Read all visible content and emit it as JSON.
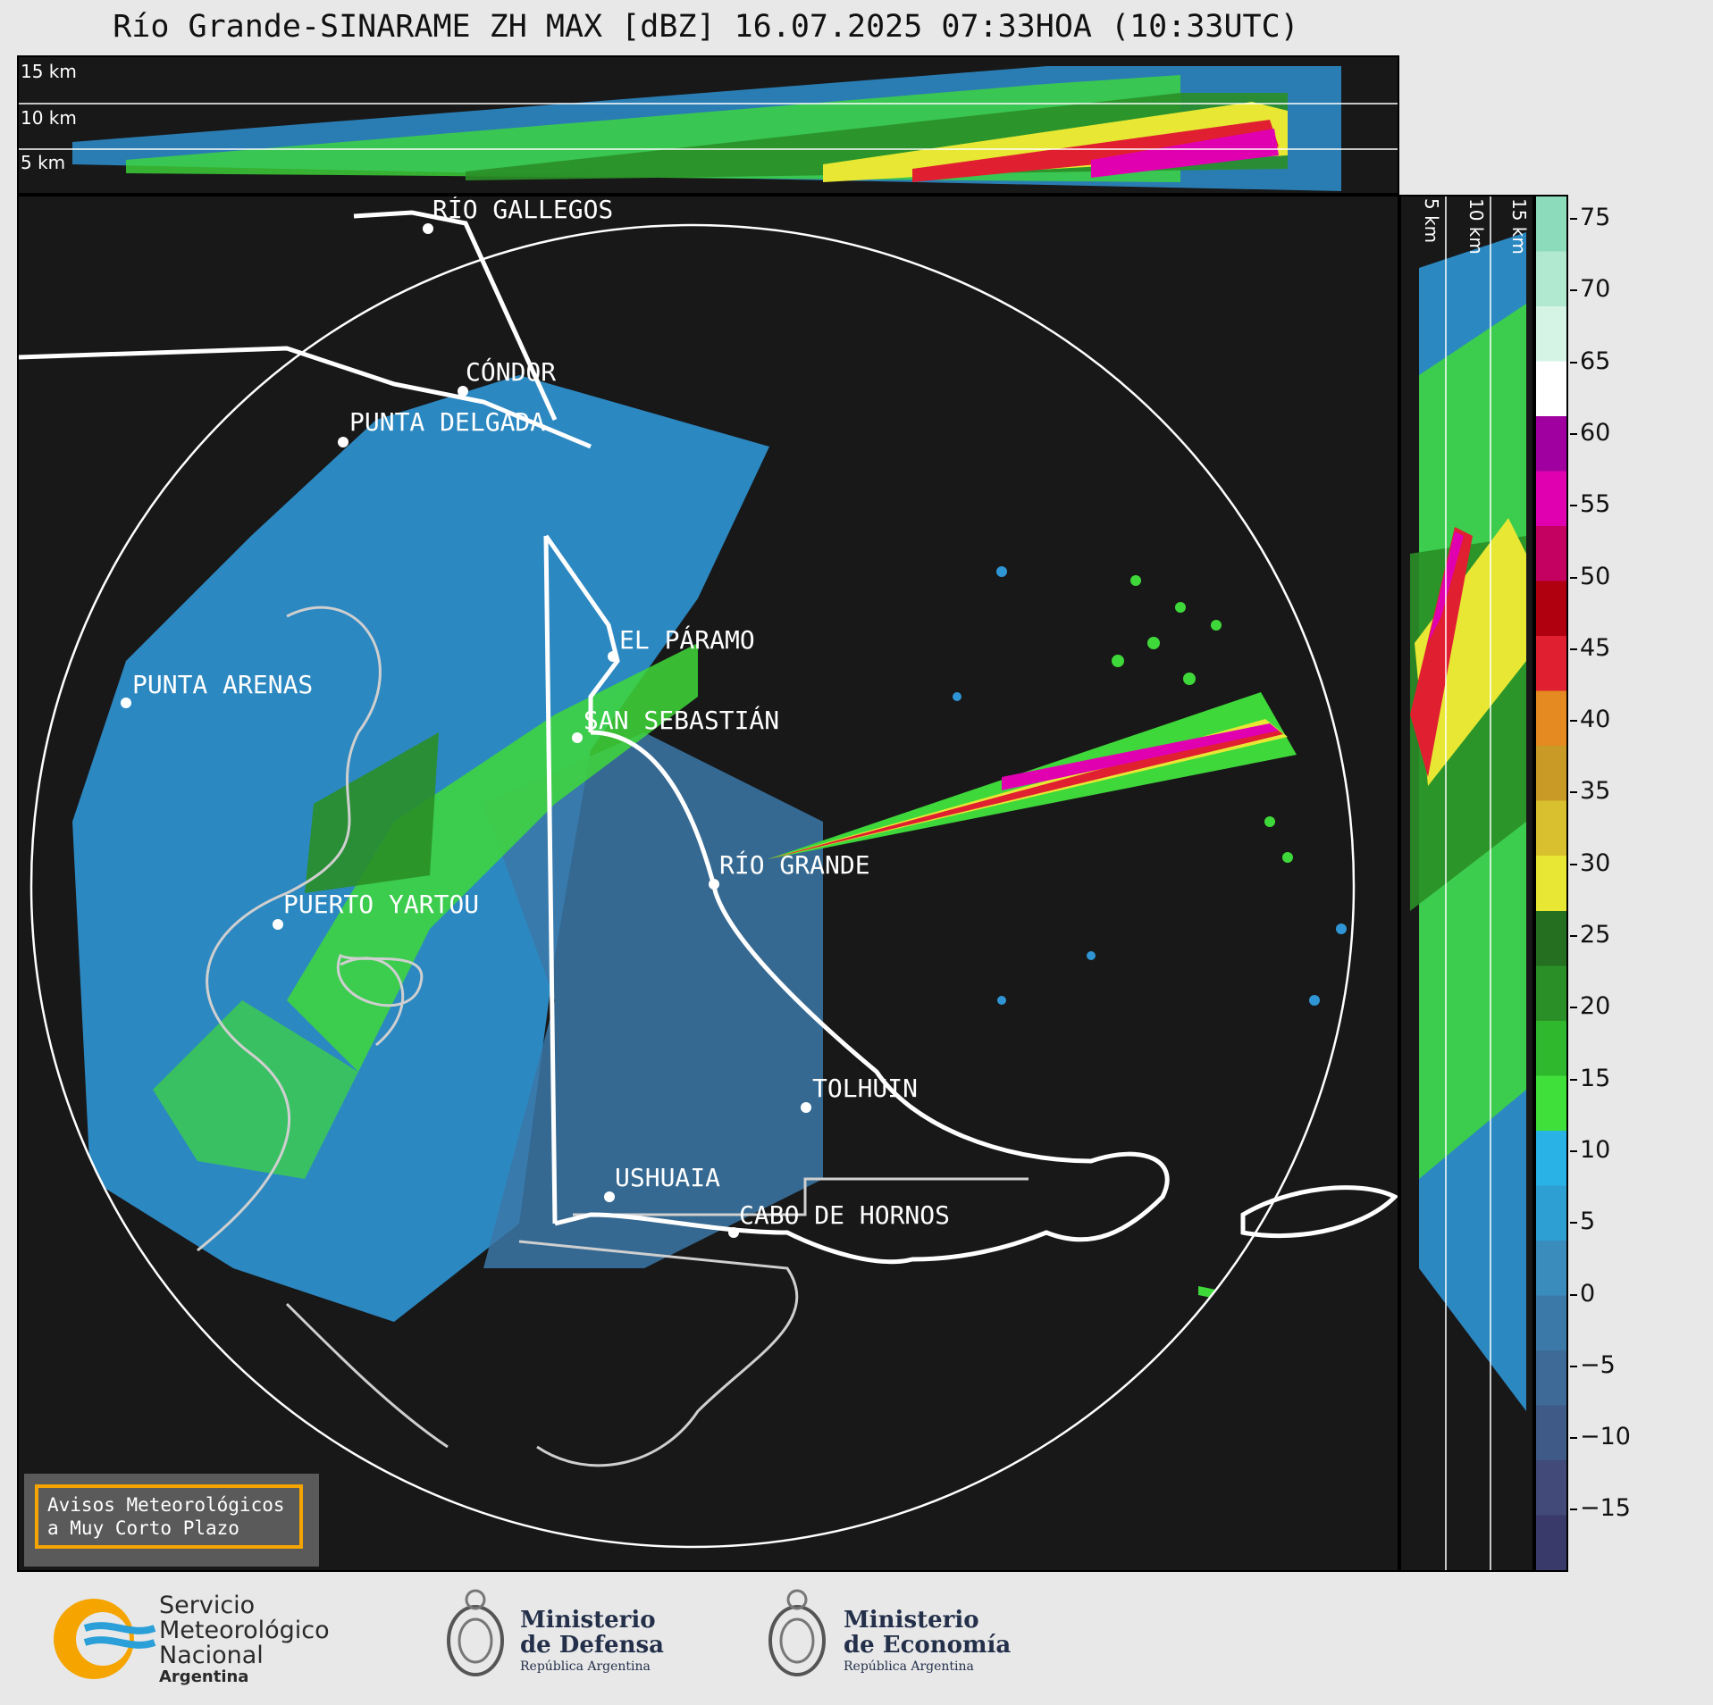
{
  "title": "Río Grande-SINARAME ZH MAX [dBZ] 16.07.2025 07:33HOA (10:33UTC)",
  "top_panel": {
    "height_labels": [
      "15 km",
      "10 km",
      "5 km"
    ]
  },
  "right_panel": {
    "height_labels": [
      "5 km",
      "10 km",
      "15 km"
    ]
  },
  "cities": [
    {
      "name": "RÍO GALLEGOS"
    },
    {
      "name": "CÓNDOR"
    },
    {
      "name": "PUNTA DELGADA"
    },
    {
      "name": "EL PÁRAMO"
    },
    {
      "name": "PUNTA ARENAS"
    },
    {
      "name": "SAN SEBASTIÁN"
    },
    {
      "name": "RÍO GRANDE"
    },
    {
      "name": "PUERTO YARTOU"
    },
    {
      "name": "TOLHUIN"
    },
    {
      "name": "USHUAIA"
    },
    {
      "name": "CABO DE HORNOS"
    }
  ],
  "colorbar": {
    "unit": "dBZ",
    "ticks": [
      "75",
      "70",
      "65",
      "60",
      "55",
      "50",
      "45",
      "40",
      "35",
      "30",
      "25",
      "20",
      "15",
      "10",
      "5",
      "0",
      "−5",
      "−10",
      "−15"
    ],
    "colors": [
      "#3a3a6a",
      "#414a78",
      "#3f5a86",
      "#3d6a96",
      "#3b7aa8",
      "#3a8cbc",
      "#2e9fd2",
      "#29b2e6",
      "#3fe03a",
      "#2fb82e",
      "#2a8f27",
      "#247020",
      "#e8e834",
      "#d8c02e",
      "#c99a26",
      "#e48a20",
      "#e02030",
      "#b00010",
      "#c40060",
      "#e000b0",
      "#a000a0",
      "#ffffff",
      "#d6f4e6",
      "#b0e8d0",
      "#8cdcbc"
    ]
  },
  "avisos": {
    "line1": "Avisos Meteorológicos",
    "line2": "a Muy Corto Plazo"
  },
  "logos": {
    "smn": {
      "line1": "Servicio",
      "line2": "Meteorológico",
      "line3": "Nacional",
      "line4": "Argentina"
    },
    "defensa": {
      "line1": "Ministerio",
      "line2": "de Defensa",
      "line3": "República Argentina"
    },
    "economia": {
      "line1": "Ministerio",
      "line2": "de Economía",
      "line3": "República Argentina"
    }
  }
}
